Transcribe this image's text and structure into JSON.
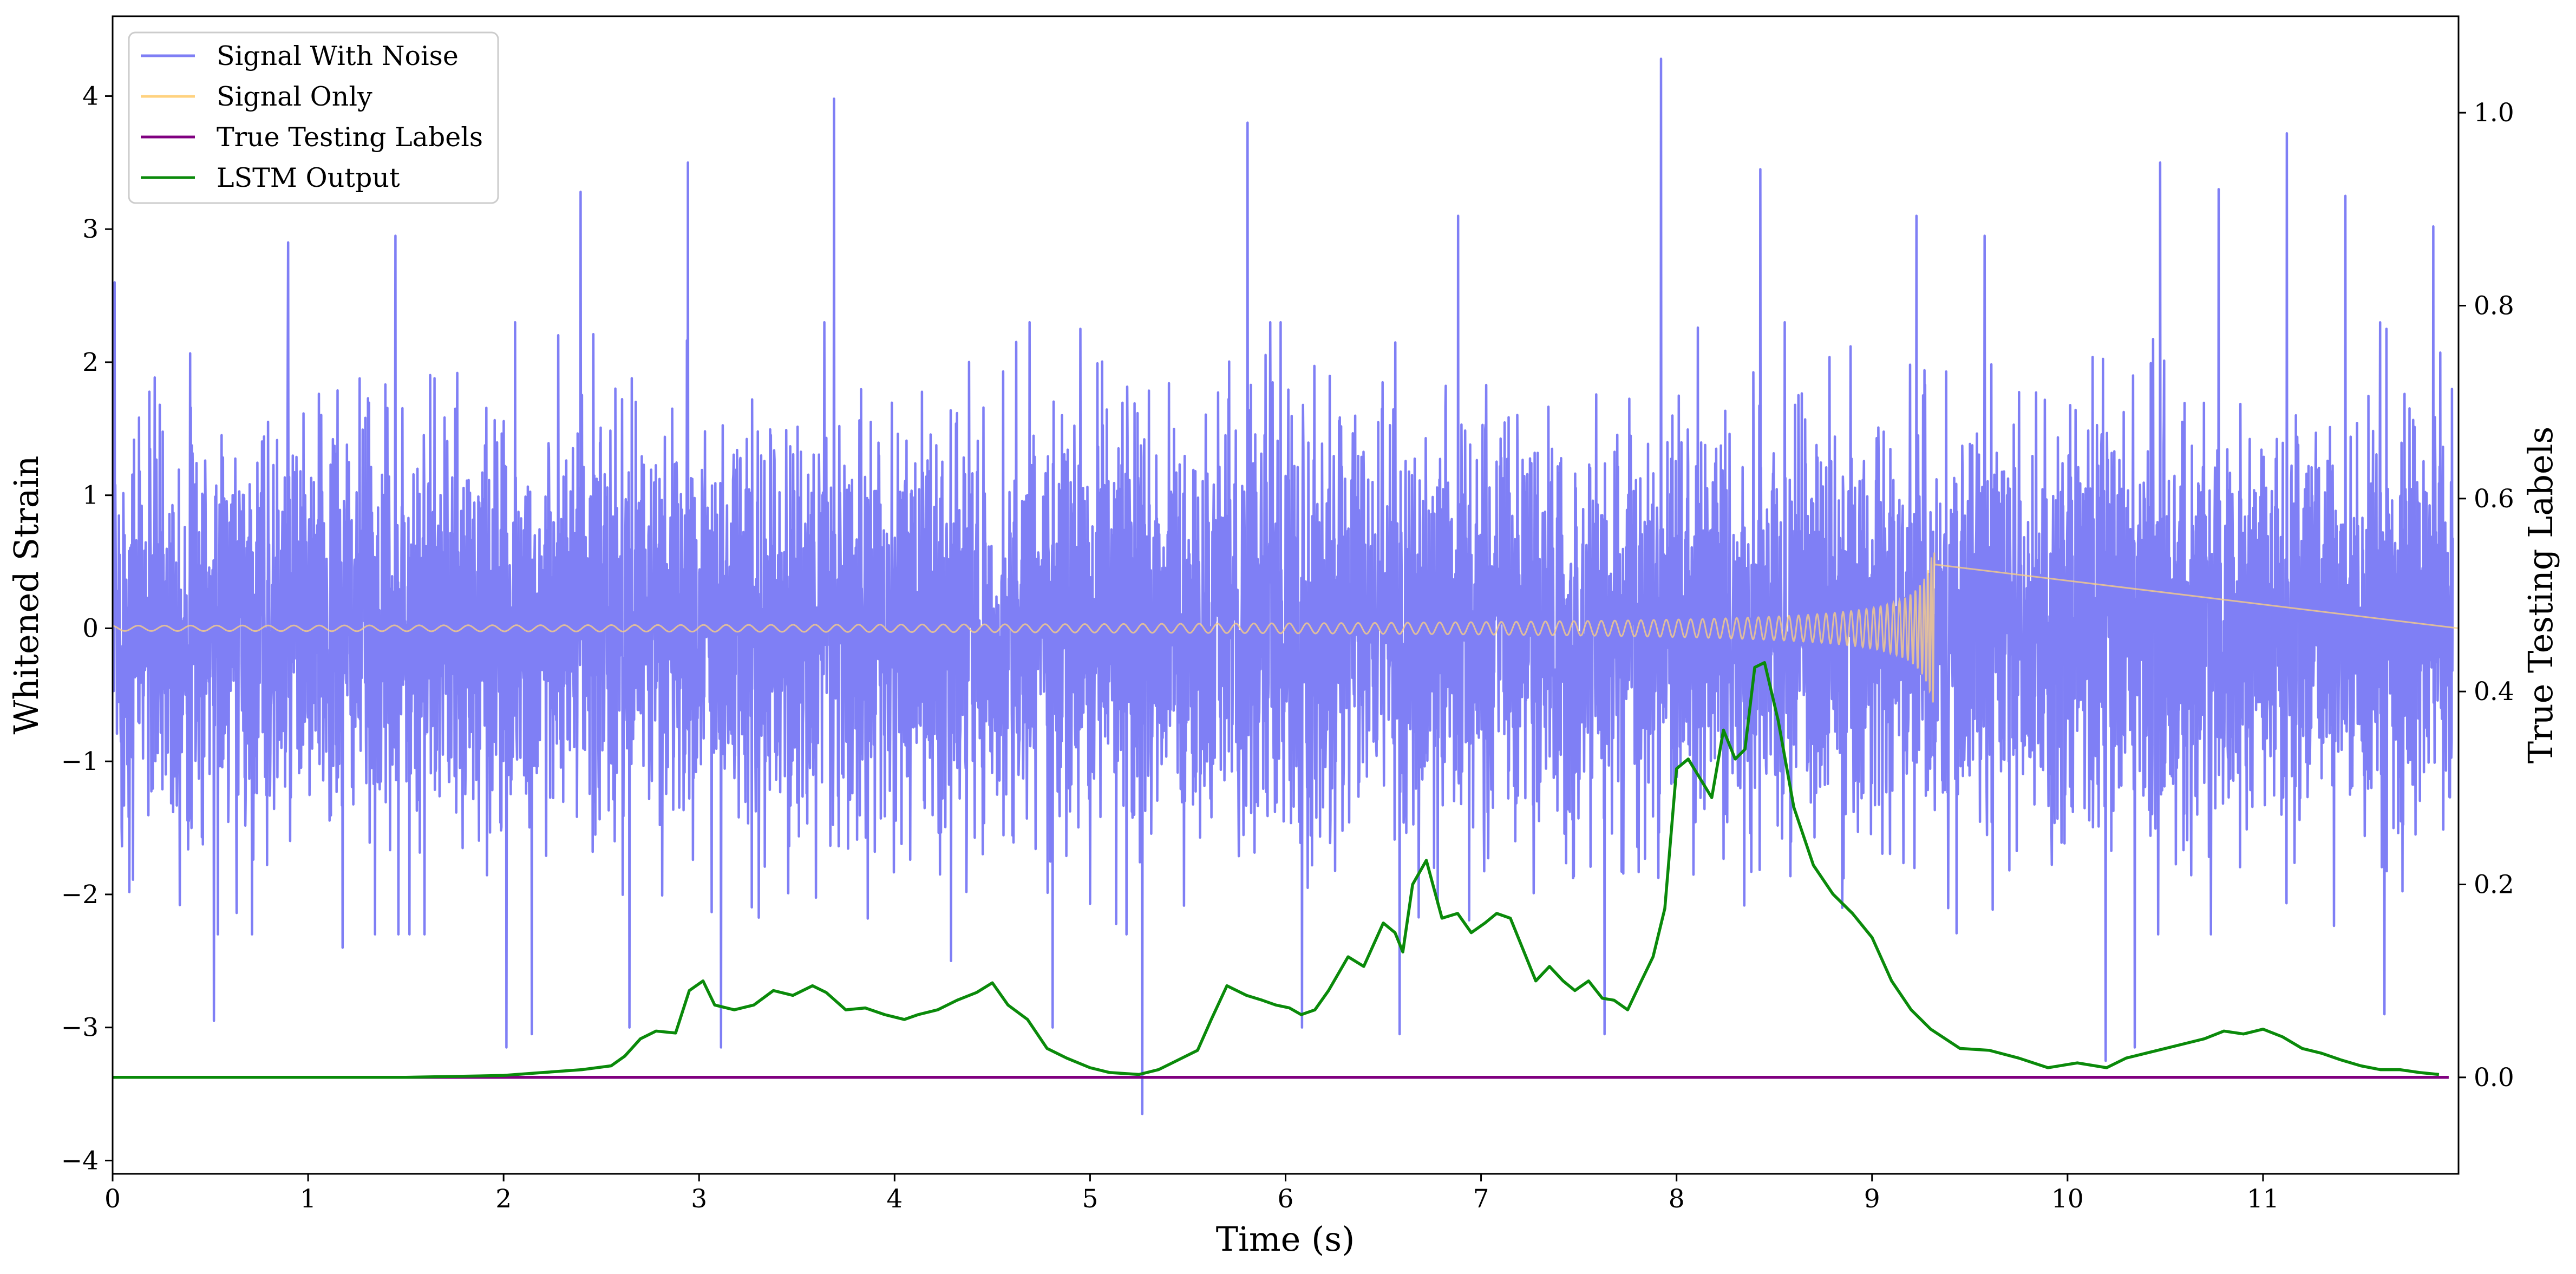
{
  "chart_data": {
    "type": "line",
    "xlabel": "Time (s)",
    "ylabel": "Whitened Strain",
    "y2label": "True Testing Labels",
    "xlim": [
      0,
      12
    ],
    "ylim": [
      -4.1,
      4.6
    ],
    "y2lim": [
      -0.1,
      1.1
    ],
    "xticks": [
      0,
      1,
      2,
      3,
      4,
      5,
      6,
      7,
      8,
      9,
      10,
      11
    ],
    "yticks": [
      -4,
      -3,
      -2,
      -1,
      0,
      1,
      2,
      3,
      4
    ],
    "y2ticks": [
      0.0,
      0.2,
      0.4,
      0.6,
      0.8,
      1.0
    ],
    "xtick_labels": [
      "0",
      "1",
      "2",
      "3",
      "4",
      "5",
      "6",
      "7",
      "8",
      "9",
      "10",
      "11"
    ],
    "ytick_labels": [
      "−4",
      "−3",
      "−2",
      "−1",
      "0",
      "1",
      "2",
      "3",
      "4"
    ],
    "y2tick_labels": [
      "0.0",
      "0.2",
      "0.4",
      "0.6",
      "0.8",
      "1.0"
    ],
    "grid": false,
    "legend_position": "top-left",
    "series": [
      {
        "name": "Signal With Noise",
        "axis": "left",
        "color": "#7f7ff5",
        "std": 0.75,
        "spikes": [
          [
            0.01,
            2.6
          ],
          [
            0.52,
            -2.95
          ],
          [
            0.9,
            2.9
          ],
          [
            1.18,
            -2.4
          ],
          [
            1.45,
            2.95
          ],
          [
            2.02,
            -3.15
          ],
          [
            2.15,
            -3.05
          ],
          [
            2.4,
            3.28
          ],
          [
            2.65,
            -3.0
          ],
          [
            2.95,
            3.5
          ],
          [
            3.12,
            -3.15
          ],
          [
            3.7,
            3.98
          ],
          [
            4.3,
            -2.5
          ],
          [
            4.82,
            -3.0
          ],
          [
            5.28,
            -3.65
          ],
          [
            5.82,
            3.8
          ],
          [
            6.1,
            -3.0
          ],
          [
            6.6,
            -3.05
          ],
          [
            6.9,
            3.1
          ],
          [
            7.65,
            -3.05
          ],
          [
            7.94,
            4.28
          ],
          [
            8.45,
            3.45
          ],
          [
            9.25,
            3.1
          ],
          [
            9.6,
            2.95
          ],
          [
            10.22,
            -3.25
          ],
          [
            10.37,
            -3.15
          ],
          [
            10.5,
            3.5
          ],
          [
            10.8,
            3.3
          ],
          [
            11.15,
            3.72
          ],
          [
            11.45,
            3.25
          ],
          [
            11.65,
            -2.9
          ],
          [
            11.9,
            3.02
          ]
        ]
      },
      {
        "name": "Signal Only",
        "axis": "left",
        "color": "#ffd27f",
        "chirp_end": 9.32,
        "amplitude_start": 0.02,
        "amplitude_peak": 0.57
      },
      {
        "name": "True Testing Labels",
        "axis": "right",
        "color": "#800080",
        "x": [
          0,
          11.95
        ],
        "y": [
          0.0,
          0.0
        ]
      },
      {
        "name": "LSTM Output",
        "axis": "right",
        "color": "#0a8a0a",
        "x": [
          0,
          1.0,
          1.5,
          2.0,
          2.2,
          2.4,
          2.55,
          2.62,
          2.7,
          2.78,
          2.88,
          2.95,
          3.02,
          3.08,
          3.18,
          3.28,
          3.38,
          3.48,
          3.58,
          3.65,
          3.75,
          3.85,
          3.95,
          4.05,
          4.12,
          4.22,
          4.32,
          4.42,
          4.5,
          4.58,
          4.68,
          4.78,
          4.88,
          5.0,
          5.1,
          5.25,
          5.35,
          5.45,
          5.55,
          5.62,
          5.7,
          5.8,
          5.88,
          5.95,
          6.02,
          6.08,
          6.15,
          6.22,
          6.32,
          6.4,
          6.5,
          6.56,
          6.6,
          6.65,
          6.72,
          6.8,
          6.88,
          6.95,
          7.02,
          7.08,
          7.15,
          7.22,
          7.28,
          7.35,
          7.42,
          7.48,
          7.55,
          7.62,
          7.68,
          7.75,
          7.82,
          7.88,
          7.94,
          8.0,
          8.06,
          8.12,
          8.18,
          8.24,
          8.3,
          8.35,
          8.4,
          8.45,
          8.52,
          8.6,
          8.7,
          8.8,
          8.9,
          9.0,
          9.1,
          9.2,
          9.3,
          9.45,
          9.6,
          9.75,
          9.9,
          10.05,
          10.2,
          10.3,
          10.4,
          10.5,
          10.6,
          10.7,
          10.8,
          10.9,
          11.0,
          11.1,
          11.2,
          11.3,
          11.4,
          11.5,
          11.6,
          11.7,
          11.8,
          11.9
        ],
        "y": [
          0.0,
          0.0,
          0.0,
          0.002,
          0.005,
          0.008,
          0.012,
          0.022,
          0.04,
          0.048,
          0.046,
          0.09,
          0.1,
          0.075,
          0.07,
          0.075,
          0.09,
          0.085,
          0.095,
          0.088,
          0.07,
          0.072,
          0.065,
          0.06,
          0.065,
          0.07,
          0.08,
          0.088,
          0.098,
          0.075,
          0.06,
          0.03,
          0.02,
          0.01,
          0.005,
          0.003,
          0.008,
          0.018,
          0.028,
          0.06,
          0.095,
          0.085,
          0.08,
          0.075,
          0.072,
          0.065,
          0.07,
          0.09,
          0.125,
          0.115,
          0.16,
          0.15,
          0.13,
          0.2,
          0.225,
          0.165,
          0.17,
          0.15,
          0.16,
          0.17,
          0.165,
          0.13,
          0.1,
          0.115,
          0.1,
          0.09,
          0.1,
          0.082,
          0.08,
          0.07,
          0.1,
          0.125,
          0.175,
          0.32,
          0.33,
          0.31,
          0.29,
          0.36,
          0.33,
          0.34,
          0.425,
          0.43,
          0.37,
          0.28,
          0.22,
          0.19,
          0.17,
          0.145,
          0.1,
          0.07,
          0.05,
          0.03,
          0.028,
          0.02,
          0.01,
          0.015,
          0.01,
          0.02,
          0.025,
          0.03,
          0.035,
          0.04,
          0.048,
          0.045,
          0.05,
          0.042,
          0.03,
          0.025,
          0.018,
          0.012,
          0.008,
          0.008,
          0.005,
          0.003
        ]
      }
    ]
  }
}
